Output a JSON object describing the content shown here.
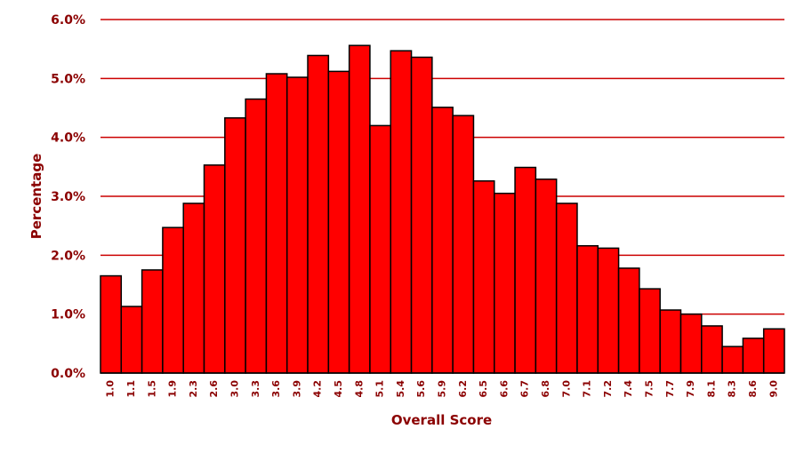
{
  "chart_data": {
    "type": "bar",
    "title": "",
    "xlabel": "Overall Score",
    "ylabel": "Percentage",
    "categories": [
      "1.0",
      "1.1",
      "1.5",
      "1.9",
      "2.3",
      "2.6",
      "3.0",
      "3.3",
      "3.6",
      "3.9",
      "4.2",
      "4.5",
      "4.8",
      "5.1",
      "5.4",
      "5.6",
      "5.9",
      "6.2",
      "6.5",
      "6.6",
      "6.7",
      "6.8",
      "7.0",
      "7.1",
      "7.2",
      "7.4",
      "7.5",
      "7.7",
      "7.9",
      "8.1",
      "8.3",
      "8.6",
      "9.0"
    ],
    "values": [
      1.65,
      1.13,
      1.75,
      2.47,
      2.88,
      3.53,
      4.33,
      4.65,
      5.08,
      5.02,
      5.39,
      5.12,
      5.56,
      4.2,
      5.47,
      5.36,
      4.51,
      4.37,
      3.26,
      3.05,
      3.49,
      3.29,
      2.88,
      2.16,
      2.12,
      1.78,
      1.43,
      1.07,
      1.0,
      0.8,
      0.45,
      0.59,
      0.75
    ],
    "ylim": [
      0,
      6
    ],
    "yticks": [
      0,
      1,
      2,
      3,
      4,
      5,
      6
    ],
    "ytick_format": "%",
    "grid": true,
    "colors": {
      "bar": "#ff0000",
      "bar_edge": "#000000",
      "grid": "#cc0000",
      "text": "#8b0000"
    }
  }
}
